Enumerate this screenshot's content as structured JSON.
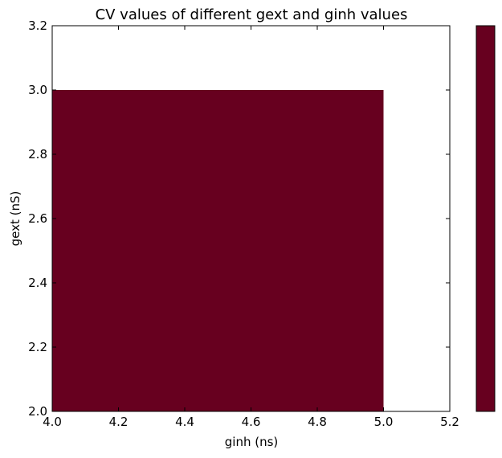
{
  "chart_data": {
    "type": "heatmap",
    "title": "CV values of different gext and ginh values",
    "xlabel": "ginh (ns)",
    "ylabel": "gext (nS)",
    "xlim": [
      4.0,
      5.2
    ],
    "ylim": [
      2.0,
      3.2
    ],
    "xticks": [
      "4.0",
      "4.2",
      "4.4",
      "4.6",
      "4.8",
      "5.0",
      "5.2"
    ],
    "yticks": [
      "2.0",
      "2.2",
      "2.4",
      "2.6",
      "2.8",
      "3.0",
      "3.2"
    ],
    "cells": [
      {
        "x0": 4.0,
        "x1": 5.0,
        "y0": 2.0,
        "y1": 3.0,
        "color": "#67001f"
      }
    ],
    "colorbar": {
      "colors": [
        "#67001f"
      ],
      "ticks": []
    },
    "grid": false
  }
}
